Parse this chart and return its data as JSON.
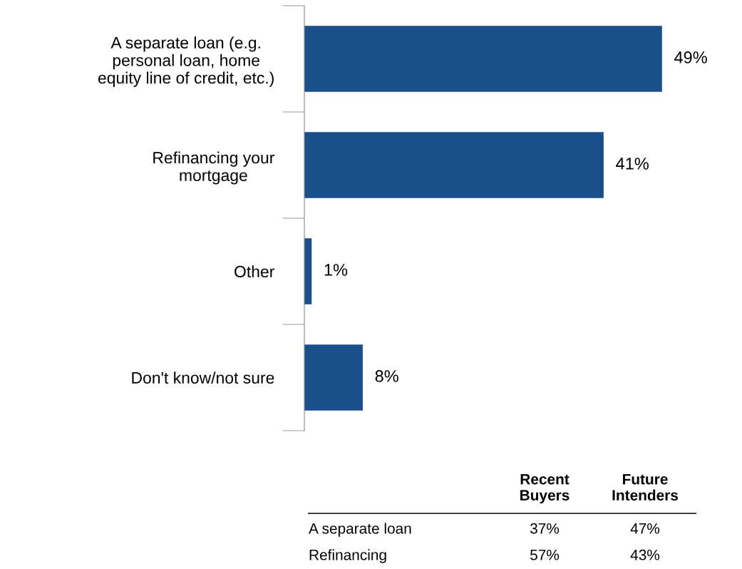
{
  "chart_data": [
    {
      "type": "bar",
      "orientation": "horizontal",
      "categories": [
        "A separate loan (e.g.\npersonal loan, home\nequity line of credit, etc.)",
        "Refinancing your\nmortgage",
        "Other",
        "Don't know/not sure"
      ],
      "series": [
        {
          "color": "#1a4f8b",
          "values": [
            49,
            41,
            1,
            8
          ],
          "value_labels": [
            "49%",
            "41%",
            "1%",
            "8%"
          ]
        }
      ],
      "tick_labels": "y"
    },
    {
      "type": "other",
      "categories": [
        "A separate loan",
        "Refinancing"
      ],
      "series": [
        {
          "name": "Recent\nBuyers",
          "values": [
            37,
            57
          ],
          "value_labels": [
            "37%",
            "57%"
          ]
        },
        {
          "name": "Future\nIntenders",
          "values": [
            47,
            43
          ],
          "value_labels": [
            "47%",
            "43%"
          ]
        }
      ]
    }
  ]
}
